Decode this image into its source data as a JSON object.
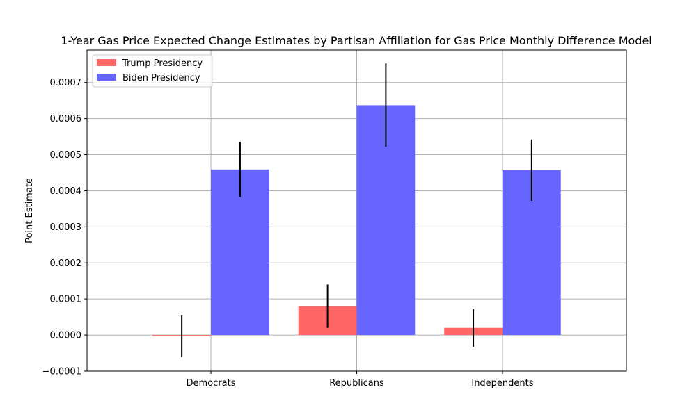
{
  "chart_data": {
    "type": "bar",
    "title": "1-Year Gas Price Expected Change Estimates by Partisan Affiliation for Gas Price Monthly Difference Model",
    "xlabel": "",
    "ylabel": "Point Estimate",
    "categories": [
      "Democrats",
      "Republicans",
      "Independents"
    ],
    "ylim": [
      -0.0001,
      0.00079
    ],
    "yticks": [
      -0.0001,
      0.0,
      0.0001,
      0.0002,
      0.0003,
      0.0004,
      0.0005,
      0.0006,
      0.0007
    ],
    "ytick_labels": [
      "−0.0001",
      "0.0000",
      "0.0001",
      "0.0002",
      "0.0003",
      "0.0004",
      "0.0005",
      "0.0006",
      "0.0007"
    ],
    "grid": true,
    "legend_position": "top-left",
    "series": [
      {
        "name": "Trump Presidency",
        "color": "#ff6666",
        "values": [
          -3e-06,
          8e-05,
          2e-05
        ],
        "error_low": [
          -6.1e-05,
          2e-05,
          -3.3e-05
        ],
        "error_high": [
          5.6e-05,
          0.00014,
          7.2e-05
        ]
      },
      {
        "name": "Biden Presidency",
        "color": "#6666ff",
        "values": [
          0.000459,
          0.000637,
          0.000457
        ],
        "error_low": [
          0.000383,
          0.000522,
          0.000372
        ],
        "error_high": [
          0.000536,
          0.000753,
          0.000542
        ]
      }
    ]
  }
}
